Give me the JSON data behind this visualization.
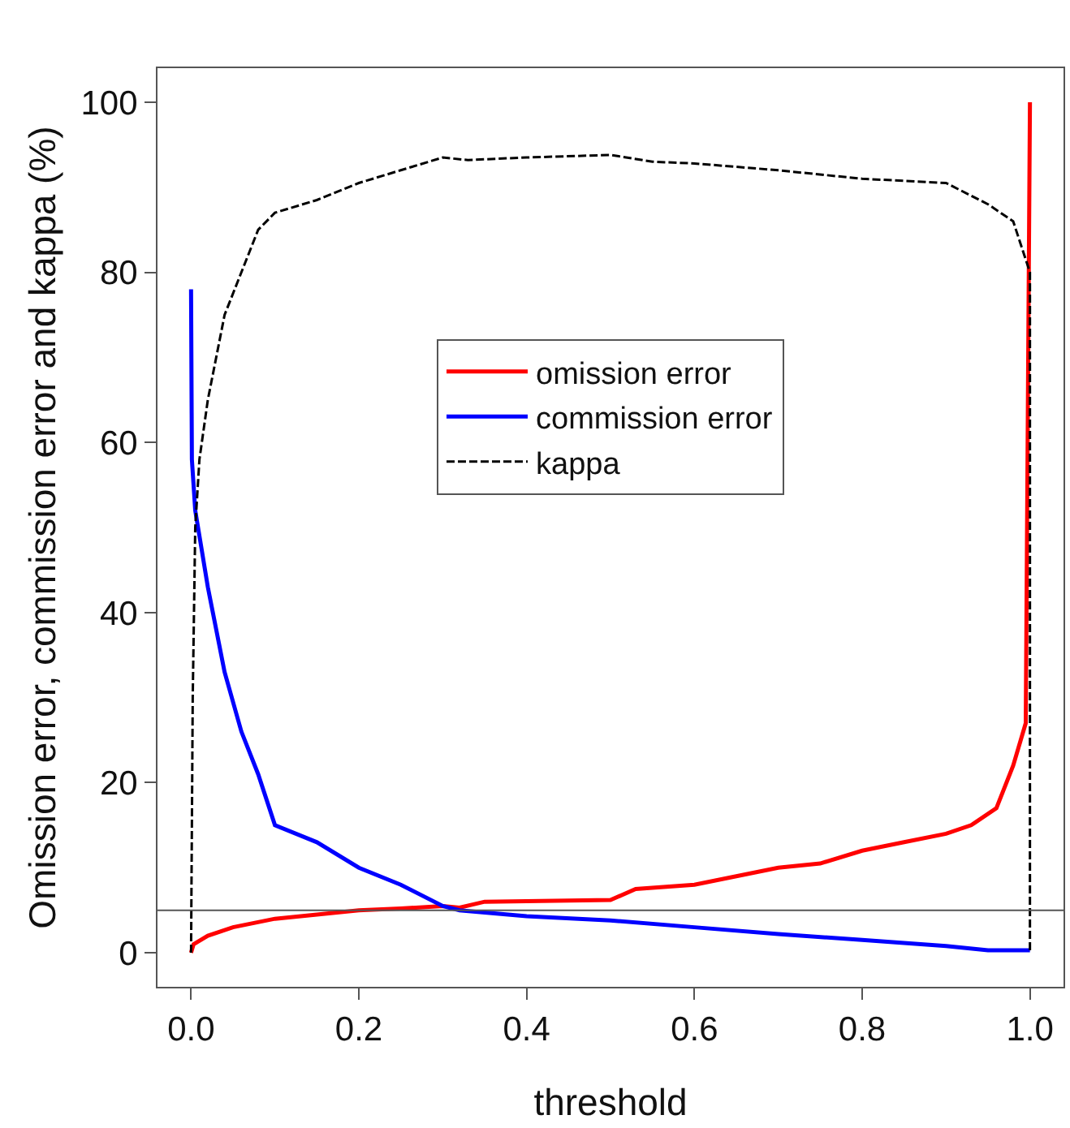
{
  "chart_data": {
    "type": "line",
    "xlabel": "threshold",
    "ylabel": "Omission error, commission error and kappa (%)",
    "xlim": [
      -0.04,
      1.04
    ],
    "ylim": [
      -4,
      104
    ],
    "xticks": [
      {
        "value": 0,
        "label": "0.0"
      },
      {
        "value": 0.2,
        "label": "0.2"
      },
      {
        "value": 0.4,
        "label": "0.4"
      },
      {
        "value": 0.6,
        "label": "0.6"
      },
      {
        "value": 0.8,
        "label": "0.8"
      },
      {
        "value": 1,
        "label": "1.0"
      }
    ],
    "yticks": [
      0,
      20,
      40,
      60,
      80,
      100
    ],
    "grid": false,
    "legend": "center",
    "marker": "none",
    "series": [
      {
        "name": "omission error",
        "color": "#ff0000",
        "line_style": "solid",
        "x": [
          0,
          0.003,
          0.02,
          0.05,
          0.1,
          0.15,
          0.2,
          0.25,
          0.3,
          0.32,
          0.35,
          0.5,
          0.53,
          0.6,
          0.65,
          0.7,
          0.75,
          0.8,
          0.85,
          0.9,
          0.93,
          0.96,
          0.98,
          0.995,
          1.0
        ],
        "values": [
          0,
          1,
          2,
          3,
          4,
          4.5,
          5,
          5.2,
          5.5,
          5.3,
          6,
          6.2,
          7.5,
          8,
          9,
          10,
          10.5,
          12,
          13,
          14,
          15,
          17,
          22,
          27,
          100
        ]
      },
      {
        "name": "commission error",
        "color": "#0000ff",
        "line_style": "solid",
        "x": [
          0,
          0.001,
          0.005,
          0.02,
          0.04,
          0.06,
          0.08,
          0.1,
          0.15,
          0.2,
          0.25,
          0.3,
          0.32,
          0.4,
          0.5,
          0.6,
          0.7,
          0.8,
          0.9,
          0.95,
          1.0
        ],
        "values": [
          78,
          58,
          52,
          43,
          33,
          26,
          21,
          15,
          13,
          10,
          8,
          5.5,
          5,
          4.3,
          3.8,
          3,
          2.2,
          1.5,
          0.8,
          0.3,
          0.3
        ]
      },
      {
        "name": "kappa",
        "color": "#000000",
        "line_style": "dashed",
        "x": [
          0,
          0.002,
          0.005,
          0.01,
          0.02,
          0.04,
          0.06,
          0.08,
          0.1,
          0.15,
          0.2,
          0.25,
          0.3,
          0.33,
          0.4,
          0.5,
          0.55,
          0.6,
          0.7,
          0.8,
          0.9,
          0.95,
          0.98,
          1.0,
          1.0
        ],
        "values": [
          0,
          30,
          50,
          58,
          65,
          75,
          80,
          85,
          87,
          88.5,
          90.5,
          92,
          93.5,
          93.2,
          93.5,
          93.8,
          93,
          92.8,
          92,
          91,
          90.5,
          88,
          86,
          80,
          0
        ]
      }
    ],
    "ref_lines": [
      {
        "axis": "y",
        "value": 5,
        "color": "#555555",
        "line_style": "solid"
      }
    ]
  }
}
